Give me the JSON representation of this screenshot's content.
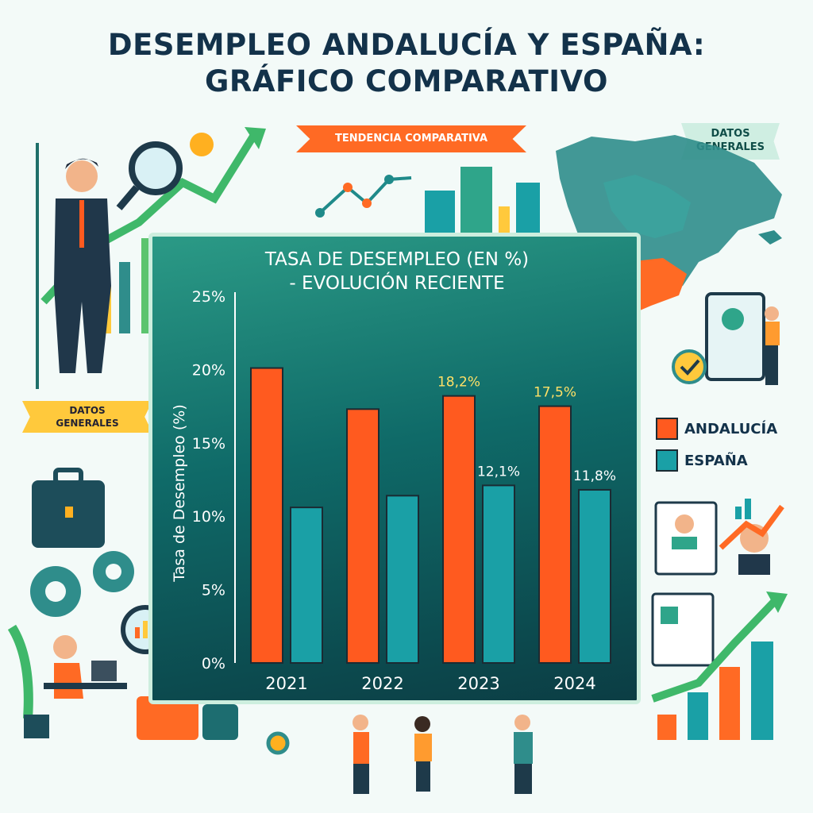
{
  "page": {
    "title_line1": "DESEMPLEO ANDALUCÍA Y ESPAÑA:",
    "title_line2": "GRÁFICO COMPARATIVO",
    "ribbon_trend": "TENDENCIA COMPARATIVA",
    "ribbon_data_top_1": "DATOS",
    "ribbon_data_top_2": "GENERALES",
    "ribbon_data_left_1": "DATOS",
    "ribbon_data_left_2": "GENERALES"
  },
  "colors": {
    "andalucia": "#ff5a1f",
    "espana": "#1aa0a6",
    "map_sea": "#2f8d8b",
    "map_highlight": "#ff6a24"
  },
  "chart_data": {
    "type": "bar",
    "title_line1": "TASA DE DESEMPLEO (EN %)",
    "title_line2": "- EVOLUCIÓN RECIENTE",
    "ylabel": "Tasa de Desempleo (%)",
    "xlabel": "",
    "categories": [
      "2021",
      "2022",
      "2023",
      "2024"
    ],
    "ylim": [
      0,
      25
    ],
    "yticks": [
      "0%",
      "5%",
      "10%",
      "15%",
      "20%",
      "25%"
    ],
    "series": [
      {
        "name": "ANDALUCÍA",
        "values": [
          20.1,
          17.3,
          18.2,
          17.5
        ],
        "labels": [
          "",
          "",
          "18,2%",
          "17,5%"
        ]
      },
      {
        "name": "ESPAÑA",
        "values": [
          10.6,
          11.4,
          12.1,
          11.8
        ],
        "labels": [
          "",
          "",
          "12,1%",
          "11,8%"
        ]
      }
    ],
    "legend_position": "right",
    "grid": false
  }
}
